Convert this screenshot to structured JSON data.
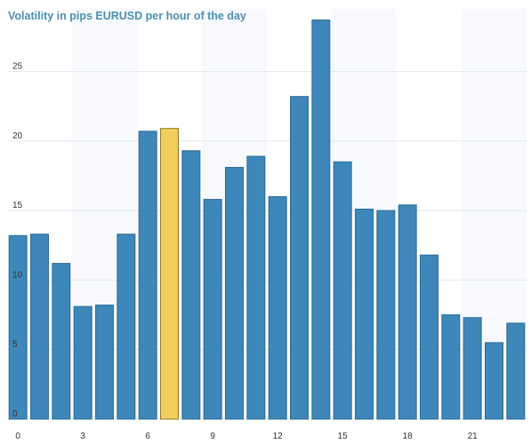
{
  "chart_data": {
    "type": "bar",
    "title": "Volatility in pips EURUSD per hour of the day",
    "xlabel": "",
    "ylabel": "",
    "categories": [
      0,
      1,
      2,
      3,
      4,
      5,
      6,
      7,
      8,
      9,
      10,
      11,
      12,
      13,
      14,
      15,
      16,
      17,
      18,
      19,
      20,
      21,
      22,
      23
    ],
    "values": [
      13.2,
      13.3,
      11.2,
      8.1,
      8.2,
      13.3,
      20.7,
      20.9,
      19.3,
      15.8,
      18.1,
      18.9,
      16.0,
      23.2,
      28.7,
      18.5,
      15.1,
      15.0,
      15.4,
      11.8,
      7.5,
      7.3,
      5.5,
      6.9
    ],
    "highlight_index": 7,
    "colors": {
      "bar": "#3d87ba",
      "bar_stroke": "#2b6a94",
      "highlight": "#f0cd5c",
      "highlight_stroke": "#8a7a2a",
      "grid": "#e4e8ec",
      "title": "#4a8fb0"
    },
    "ylim": [
      0,
      29.5
    ],
    "y_ticks": [
      0,
      5,
      10,
      15,
      20,
      25
    ],
    "x_ticks": [
      0,
      3,
      6,
      9,
      12,
      15,
      18,
      21
    ],
    "grid": true,
    "legend": "none"
  }
}
